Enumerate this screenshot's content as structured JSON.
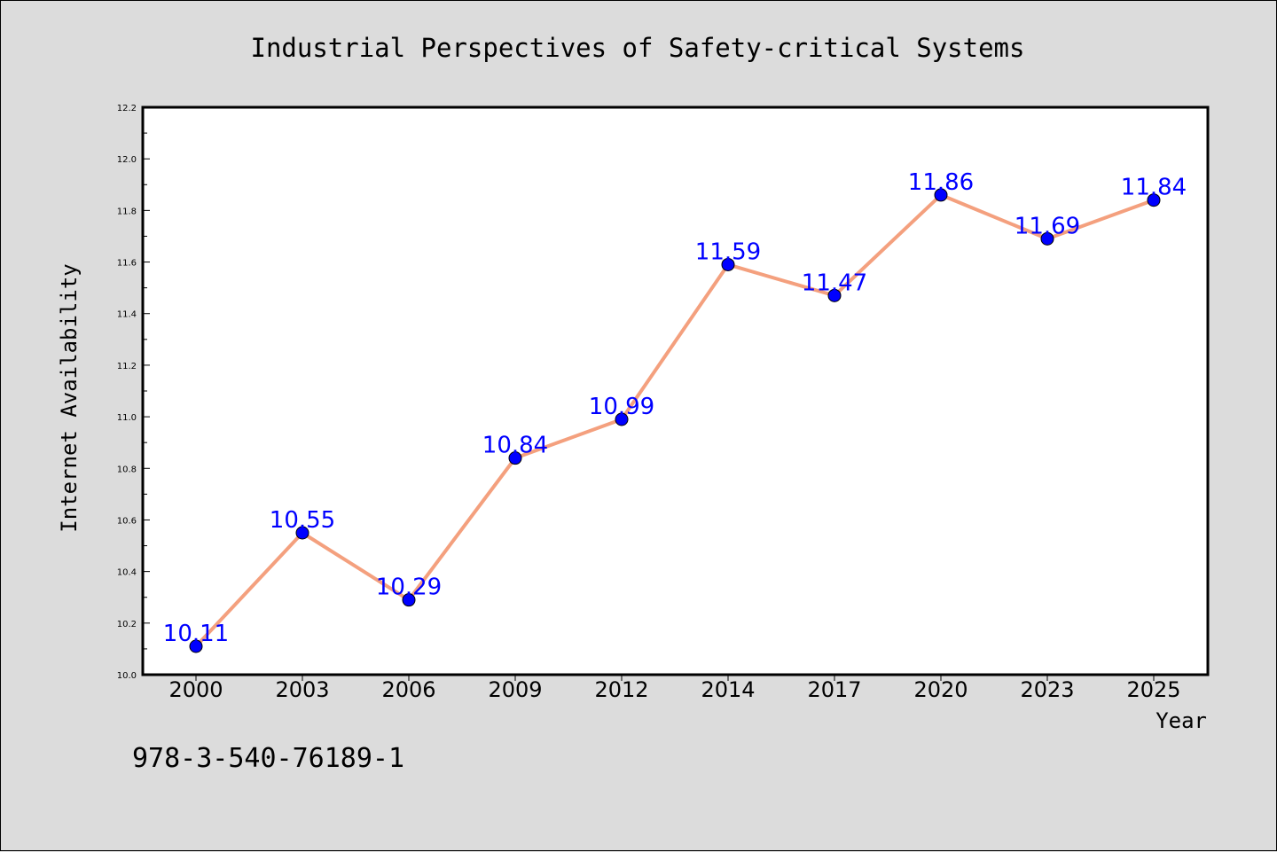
{
  "chart_data": {
    "type": "line",
    "title": "Industrial Perspectives of Safety-critical Systems",
    "xlabel": "Year",
    "ylabel": "Internet Availability",
    "categories": [
      "2000",
      "2003",
      "2006",
      "2009",
      "2012",
      "2014",
      "2017",
      "2020",
      "2023",
      "2025"
    ],
    "series": [
      {
        "values": [
          10.11,
          10.55,
          10.29,
          10.84,
          10.99,
          11.59,
          11.47,
          11.86,
          11.69,
          11.84
        ],
        "line_color": "#f4a07e",
        "marker_color": "#0000ff",
        "label_color": "#0000ff"
      }
    ],
    "ylim": [
      10.0,
      12.2
    ],
    "yticks": [
      "10.0",
      "10.2",
      "10.4",
      "10.6",
      "10.8",
      "11.0",
      "11.2",
      "11.4",
      "11.6",
      "11.8",
      "12.0",
      "12.2"
    ],
    "grid": false,
    "legend": "none",
    "data_labels": true
  },
  "footer": {
    "isbn": "978-3-540-76189-1"
  }
}
